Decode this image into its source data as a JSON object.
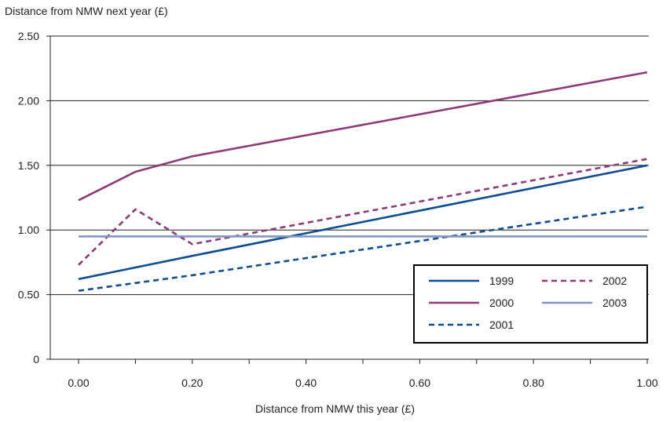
{
  "chart_data": {
    "type": "line",
    "xlabel": "Distance from NMW this year (£)",
    "ylabel": "Distance from NMW next year (£)",
    "xlim": [
      0,
      1
    ],
    "ylim": [
      0,
      2.5
    ],
    "x_ticks": [
      "0.00",
      "0.20",
      "0.40",
      "0.60",
      "0.80",
      "1.00"
    ],
    "y_ticks": [
      "0",
      "0.50",
      "1.00",
      "1.50",
      "2.00",
      "2.50"
    ],
    "grid": "horizontal",
    "legend_position": "bottom-right",
    "series": [
      {
        "name": "1999",
        "color": "#0e4d92",
        "dash": "solid",
        "points": [
          [
            0,
            0.62
          ],
          [
            0.1,
            0.71
          ],
          [
            0.2,
            0.8
          ],
          [
            1.0,
            1.5
          ]
        ]
      },
      {
        "name": "2000",
        "color": "#8e3a7a",
        "dash": "solid",
        "points": [
          [
            0,
            1.23
          ],
          [
            0.1,
            1.45
          ],
          [
            0.2,
            1.57
          ],
          [
            1.0,
            2.22
          ]
        ]
      },
      {
        "name": "2001",
        "color": "#0e4d92",
        "dash": "dashed",
        "points": [
          [
            0,
            0.53
          ],
          [
            0.1,
            0.59
          ],
          [
            0.2,
            0.65
          ],
          [
            1.0,
            1.18
          ]
        ]
      },
      {
        "name": "2002",
        "color": "#8e3a7a",
        "dash": "dashed",
        "points": [
          [
            0,
            0.73
          ],
          [
            0.1,
            1.16
          ],
          [
            0.2,
            0.89
          ],
          [
            1.0,
            1.55
          ]
        ]
      },
      {
        "name": "2003",
        "color": "#8096c8",
        "dash": "solid",
        "points": [
          [
            0,
            0.95
          ],
          [
            1.0,
            0.95
          ]
        ]
      }
    ]
  }
}
